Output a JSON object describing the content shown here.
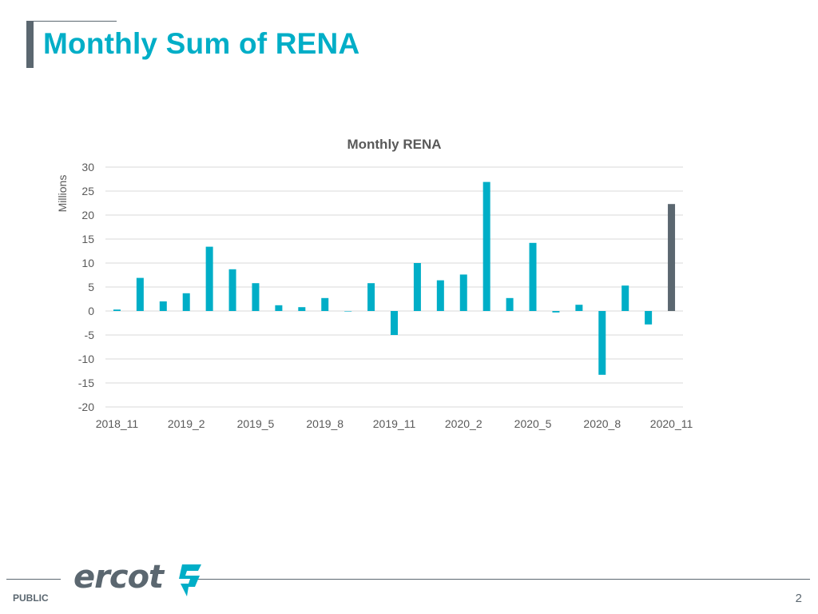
{
  "slide": {
    "title": "Monthly Sum of RENA",
    "footer_label": "PUBLIC",
    "page_number": "2",
    "logo_text": "ercot"
  },
  "colors": {
    "title": "#00aec7",
    "bar": "#00aec7",
    "bar_highlight": "#5b6770",
    "grid": "#d9d9d9",
    "text": "#595959",
    "chart_title": "#595959"
  },
  "chart_data": {
    "type": "bar",
    "title": "Monthly RENA",
    "ylabel": "Millions",
    "xlabel": "",
    "ylim": [
      -20,
      30
    ],
    "ytick_step": 5,
    "grid": true,
    "legend": "none",
    "categories": [
      "2018_11",
      "2018_12",
      "2019_1",
      "2019_2",
      "2019_3",
      "2019_4",
      "2019_5",
      "2019_6",
      "2019_7",
      "2019_8",
      "2019_9",
      "2019_10",
      "2019_11",
      "2019_12",
      "2020_1",
      "2020_2",
      "2020_3",
      "2020_4",
      "2020_5",
      "2020_6",
      "2020_7",
      "2020_8",
      "2020_9",
      "2020_10",
      "2020_11"
    ],
    "x_tick_labels": [
      "2018_11",
      "",
      "",
      "2019_2",
      "",
      "",
      "2019_5",
      "",
      "",
      "2019_8",
      "",
      "",
      "2019_11",
      "",
      "",
      "2020_2",
      "",
      "",
      "2020_5",
      "",
      "",
      "2020_8",
      "",
      "",
      "2020_11"
    ],
    "values": [
      0.3,
      6.9,
      2.0,
      3.7,
      13.4,
      8.7,
      5.8,
      1.2,
      0.8,
      2.7,
      0.0,
      5.8,
      -5.0,
      10.0,
      6.4,
      7.6,
      26.9,
      2.7,
      14.2,
      -0.3,
      1.3,
      -13.3,
      5.3,
      -2.8,
      22.3
    ],
    "highlight_index": 24
  }
}
